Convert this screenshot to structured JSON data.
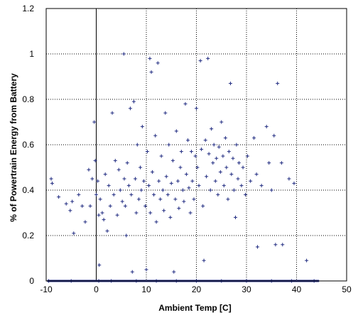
{
  "chart_data": {
    "type": "scatter",
    "title": "",
    "xlabel": "Ambient Temp [C]",
    "ylabel": "% of Powertrain Energy from Battery",
    "xlim": [
      -10,
      50
    ],
    "ylim": [
      0,
      1.2
    ],
    "xticks": [
      "-10",
      "0",
      "10",
      "20",
      "30",
      "40",
      "50"
    ],
    "yticks": [
      "0",
      "0.2",
      "0.4",
      "0.6",
      "0.8",
      "1",
      "1.2"
    ],
    "grid": true,
    "legend": "none",
    "marker": "+",
    "marker_color": "#1f2a80",
    "series": [
      {
        "points": [
          [
            -9.0,
            0.45
          ],
          [
            -8.8,
            0.43
          ],
          [
            -7.5,
            0.37
          ],
          [
            -6.0,
            0.34
          ],
          [
            -5.2,
            0.31
          ],
          [
            -4.8,
            0.35
          ],
          [
            -4.5,
            0.21
          ],
          [
            -3.5,
            0.38
          ],
          [
            -2.8,
            0.33
          ],
          [
            -2.2,
            0.26
          ],
          [
            -1.5,
            0.49
          ],
          [
            -1.2,
            0.33
          ],
          [
            -0.8,
            0.45
          ],
          [
            -0.4,
            0.7
          ],
          [
            -0.2,
            0.53
          ],
          [
            0.0,
            0.38
          ],
          [
            0.3,
            0.44
          ],
          [
            0.5,
            0.29
          ],
          [
            0.6,
            0.07
          ],
          [
            0.8,
            0.36
          ],
          [
            1.2,
            0.3
          ],
          [
            1.5,
            0.27
          ],
          [
            1.8,
            0.47
          ],
          [
            2.2,
            0.22
          ],
          [
            2.5,
            0.42
          ],
          [
            2.8,
            0.33
          ],
          [
            3.2,
            0.74
          ],
          [
            3.5,
            0.38
          ],
          [
            3.8,
            0.53
          ],
          [
            4.2,
            0.29
          ],
          [
            4.5,
            0.49
          ],
          [
            4.8,
            0.4
          ],
          [
            5.2,
            0.35
          ],
          [
            5.5,
            1.0
          ],
          [
            5.6,
            0.45
          ],
          [
            5.8,
            0.33
          ],
          [
            6.0,
            0.2
          ],
          [
            6.2,
            0.52
          ],
          [
            6.5,
            0.42
          ],
          [
            6.8,
            0.76
          ],
          [
            7.0,
            0.38
          ],
          [
            7.2,
            0.04
          ],
          [
            7.5,
            0.79
          ],
          [
            7.8,
            0.45
          ],
          [
            8.0,
            0.3
          ],
          [
            8.2,
            0.6
          ],
          [
            8.5,
            0.36
          ],
          [
            8.8,
            0.5
          ],
          [
            9.0,
            0.4
          ],
          [
            9.2,
            0.68
          ],
          [
            9.5,
            0.44
          ],
          [
            9.8,
            0.33
          ],
          [
            10.0,
            0.05
          ],
          [
            10.2,
            0.57
          ],
          [
            10.5,
            0.42
          ],
          [
            10.7,
            0.98
          ],
          [
            10.8,
            0.3
          ],
          [
            11.0,
            0.92
          ],
          [
            11.2,
            0.48
          ],
          [
            11.5,
            0.38
          ],
          [
            11.8,
            0.64
          ],
          [
            12.0,
            0.26
          ],
          [
            12.3,
            0.96
          ],
          [
            12.5,
            0.44
          ],
          [
            12.8,
            0.36
          ],
          [
            13.0,
            0.55
          ],
          [
            13.3,
            0.4
          ],
          [
            13.5,
            0.31
          ],
          [
            13.8,
            0.74
          ],
          [
            14.0,
            0.46
          ],
          [
            14.3,
            0.38
          ],
          [
            14.5,
            0.6
          ],
          [
            14.8,
            0.28
          ],
          [
            15.0,
            0.43
          ],
          [
            15.3,
            0.53
          ],
          [
            15.5,
            0.04
          ],
          [
            15.8,
            0.36
          ],
          [
            16.0,
            0.66
          ],
          [
            16.3,
            0.44
          ],
          [
            16.5,
            0.32
          ],
          [
            16.8,
            0.5
          ],
          [
            17.0,
            0.57
          ],
          [
            17.3,
            0.4
          ],
          [
            17.5,
            0.35
          ],
          [
            17.8,
            0.78
          ],
          [
            18.0,
            0.47
          ],
          [
            18.3,
            0.62
          ],
          [
            18.5,
            0.41
          ],
          [
            18.8,
            0.3
          ],
          [
            19.0,
            0.57
          ],
          [
            19.2,
            0.44
          ],
          [
            19.5,
            0.36
          ],
          [
            19.8,
            0.55
          ],
          [
            20.0,
            0.76
          ],
          [
            20.2,
            0.5
          ],
          [
            20.5,
            0.42
          ],
          [
            20.8,
            0.97
          ],
          [
            21.0,
            0.58
          ],
          [
            21.3,
            0.33
          ],
          [
            21.5,
            0.09
          ],
          [
            21.8,
            0.62
          ],
          [
            22.0,
            0.46
          ],
          [
            22.3,
            0.98
          ],
          [
            22.5,
            0.56
          ],
          [
            22.8,
            0.4
          ],
          [
            23.0,
            0.67
          ],
          [
            23.3,
            0.52
          ],
          [
            23.5,
            0.6
          ],
          [
            23.8,
            0.44
          ],
          [
            24.0,
            0.54
          ],
          [
            24.3,
            0.38
          ],
          [
            24.5,
            0.59
          ],
          [
            24.8,
            0.48
          ],
          [
            25.0,
            0.7
          ],
          [
            25.3,
            0.55
          ],
          [
            25.5,
            0.42
          ],
          [
            25.8,
            0.63
          ],
          [
            26.0,
            0.5
          ],
          [
            26.3,
            0.36
          ],
          [
            26.5,
            0.57
          ],
          [
            26.8,
            0.87
          ],
          [
            27.0,
            0.47
          ],
          [
            27.3,
            0.54
          ],
          [
            27.5,
            0.4
          ],
          [
            27.8,
            0.28
          ],
          [
            28.0,
            0.6
          ],
          [
            28.3,
            0.45
          ],
          [
            28.5,
            0.52
          ],
          [
            29.0,
            0.42
          ],
          [
            29.3,
            0.5
          ],
          [
            29.8,
            0.38
          ],
          [
            30.2,
            0.55
          ],
          [
            30.8,
            0.44
          ],
          [
            31.5,
            0.63
          ],
          [
            32.0,
            0.47
          ],
          [
            32.2,
            0.15
          ],
          [
            33.0,
            0.42
          ],
          [
            34.0,
            0.68
          ],
          [
            34.5,
            0.52
          ],
          [
            35.0,
            0.4
          ],
          [
            35.5,
            0.64
          ],
          [
            35.8,
            0.16
          ],
          [
            36.2,
            0.87
          ],
          [
            37.0,
            0.52
          ],
          [
            37.2,
            0.16
          ],
          [
            38.5,
            0.45
          ],
          [
            39.5,
            0.43
          ],
          [
            42.0,
            0.09
          ],
          [
            0.5,
            0.0
          ],
          [
            3.0,
            0.0
          ],
          [
            8.0,
            0.0
          ],
          [
            12.0,
            0.0
          ],
          [
            16.0,
            0.0
          ],
          [
            20.0,
            0.0
          ],
          [
            25.0,
            0.0
          ],
          [
            30.0,
            0.0
          ],
          [
            35.0,
            0.0
          ],
          [
            39.0,
            0.0
          ],
          [
            -9.5,
            0.0
          ],
          [
            -5.0,
            0.0
          ],
          [
            43.5,
            0.0
          ]
        ]
      }
    ]
  }
}
